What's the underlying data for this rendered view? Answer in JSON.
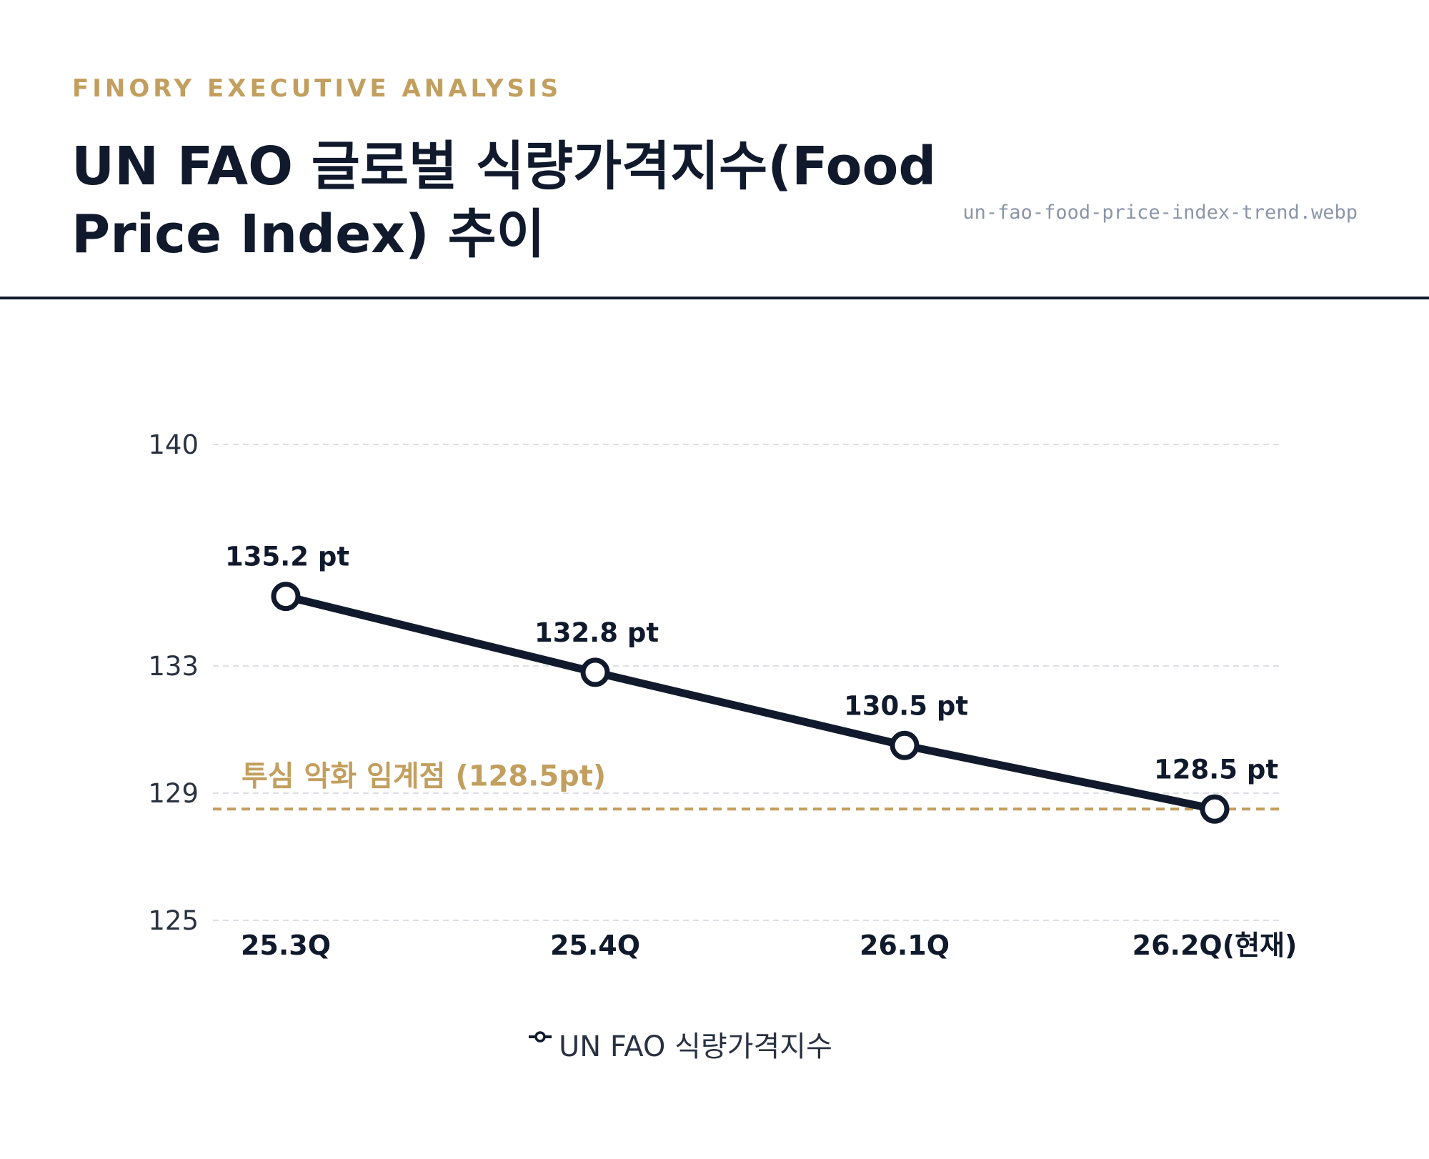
{
  "header": {
    "kicker": "FINORY EXECUTIVE ANALYSIS",
    "title": "UN FAO 글로벌 식량가격지수(Food Price Index) 추이",
    "filename": "un-fao-food-price-index-trend.webp"
  },
  "colors": {
    "series": "#101a2c",
    "threshold": "#c29f5e",
    "grid": "#dcdfe4"
  },
  "chart_data": {
    "type": "line",
    "categories": [
      "25.3Q",
      "25.4Q",
      "26.1Q",
      "26.2Q(현재)"
    ],
    "series": [
      {
        "name": "UN FAO 식량가격지수",
        "values": [
          135.2,
          132.8,
          130.5,
          128.5
        ],
        "labels": [
          "135.2 pt",
          "132.8 pt",
          "130.5 pt",
          "128.5 pt"
        ]
      }
    ],
    "y_ticks": [
      125,
      129,
      133,
      140
    ],
    "ylim": [
      125,
      140
    ],
    "y_scale": "piecewise (ticks unevenly spaced)",
    "grid": true,
    "threshold": {
      "value": 128.5,
      "label": "투심 악화 임계점 (128.5pt)"
    },
    "legend": {
      "position": "bottom-center",
      "entries": [
        "UN FAO 식량가격지수"
      ]
    }
  }
}
